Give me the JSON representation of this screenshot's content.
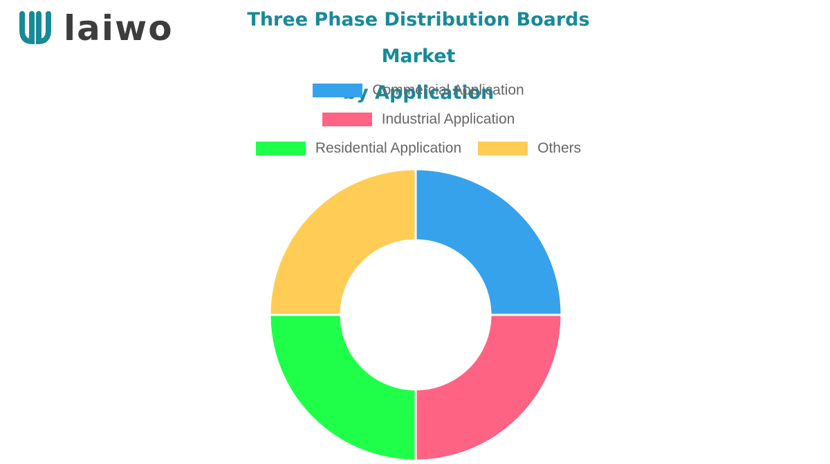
{
  "brand": {
    "name": "laiwo",
    "logo_color": "#178a99",
    "text_color": "#3d3d3d"
  },
  "chart_data": {
    "type": "pie",
    "title_lines": [
      "Three Phase Distribution Boards Market",
      "by Application"
    ],
    "legend_position": "top",
    "series": [
      {
        "name": "Commercial Application",
        "value": 25,
        "color": "#36a2eb"
      },
      {
        "name": "Industrial Application",
        "value": 25,
        "color": "#ff6384"
      },
      {
        "name": "Residential Application",
        "value": 25,
        "color": "#1fff4a"
      },
      {
        "name": "Others",
        "value": 25,
        "color": "#ffcd56"
      }
    ],
    "doughnut": true
  }
}
